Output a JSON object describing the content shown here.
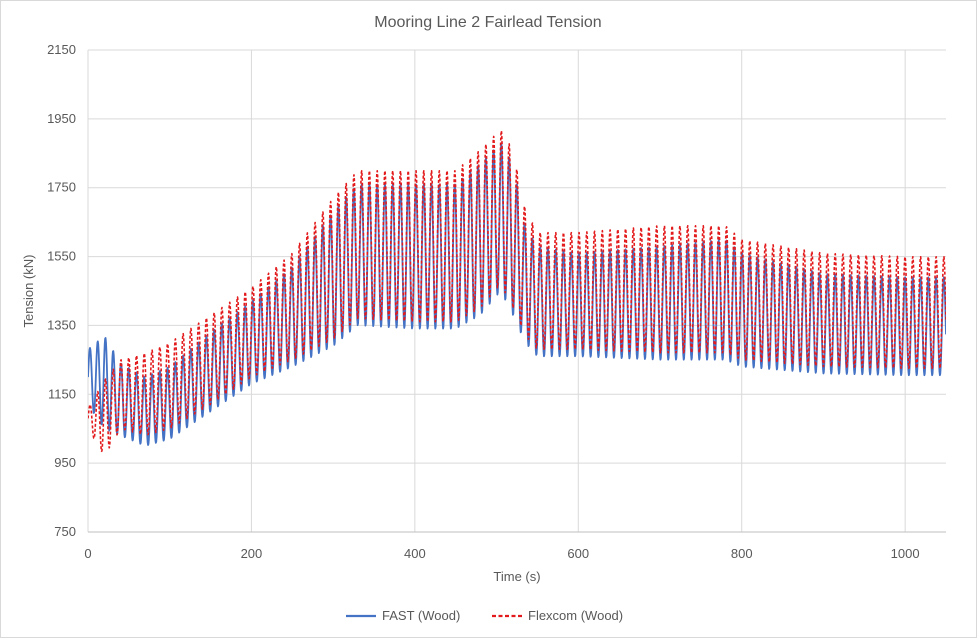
{
  "chart_data": {
    "type": "line",
    "title": "Mooring Line 2 Fairlead Tension",
    "xlabel": "Time (s)",
    "ylabel": "Tension (kN)",
    "xlim": [
      0,
      1050
    ],
    "ylim": [
      750,
      2150
    ],
    "xticks": [
      "0",
      "200",
      "400",
      "600",
      "800",
      "1000"
    ],
    "yticks": [
      "750",
      "950",
      "1150",
      "1350",
      "1550",
      "1750",
      "1950",
      "2150"
    ],
    "grid": true,
    "legend_position": "bottom",
    "wave_period_s": 9.5,
    "series": [
      {
        "name": "FAST (Wood)",
        "color": "#4472c4",
        "style": "solid",
        "envelope_time": [
          0,
          20,
          40,
          70,
          100,
          150,
          200,
          250,
          300,
          330,
          400,
          450,
          480,
          505,
          520,
          535,
          550,
          600,
          700,
          780,
          800,
          900,
          1000,
          1050
        ],
        "envelope_max": [
          1280,
          1320,
          1240,
          1200,
          1230,
          1330,
          1420,
          1520,
          1680,
          1760,
          1760,
          1760,
          1820,
          1880,
          1820,
          1640,
          1580,
          1560,
          1580,
          1600,
          1560,
          1500,
          1490,
          1490
        ],
        "envelope_min": [
          1120,
          1050,
          1030,
          1000,
          1020,
          1100,
          1180,
          1230,
          1290,
          1350,
          1340,
          1340,
          1380,
          1450,
          1380,
          1300,
          1260,
          1260,
          1250,
          1250,
          1230,
          1210,
          1205,
          1205
        ]
      },
      {
        "name": "Flexcom (Wood)",
        "color": "#e31a1c",
        "style": "dashed",
        "envelope_time": [
          0,
          20,
          40,
          70,
          100,
          150,
          200,
          250,
          300,
          330,
          400,
          450,
          480,
          505,
          520,
          535,
          550,
          600,
          700,
          780,
          800,
          900,
          1000,
          1050
        ],
        "envelope_max": [
          1110,
          1190,
          1250,
          1270,
          1300,
          1380,
          1460,
          1560,
          1720,
          1800,
          1800,
          1800,
          1860,
          1920,
          1860,
          1690,
          1620,
          1620,
          1640,
          1640,
          1600,
          1560,
          1550,
          1550
        ],
        "envelope_min": [
          1050,
          970,
          1050,
          1030,
          1050,
          1120,
          1200,
          1250,
          1310,
          1370,
          1360,
          1360,
          1400,
          1470,
          1400,
          1320,
          1280,
          1280,
          1270,
          1270,
          1250,
          1230,
          1225,
          1225
        ]
      }
    ]
  }
}
